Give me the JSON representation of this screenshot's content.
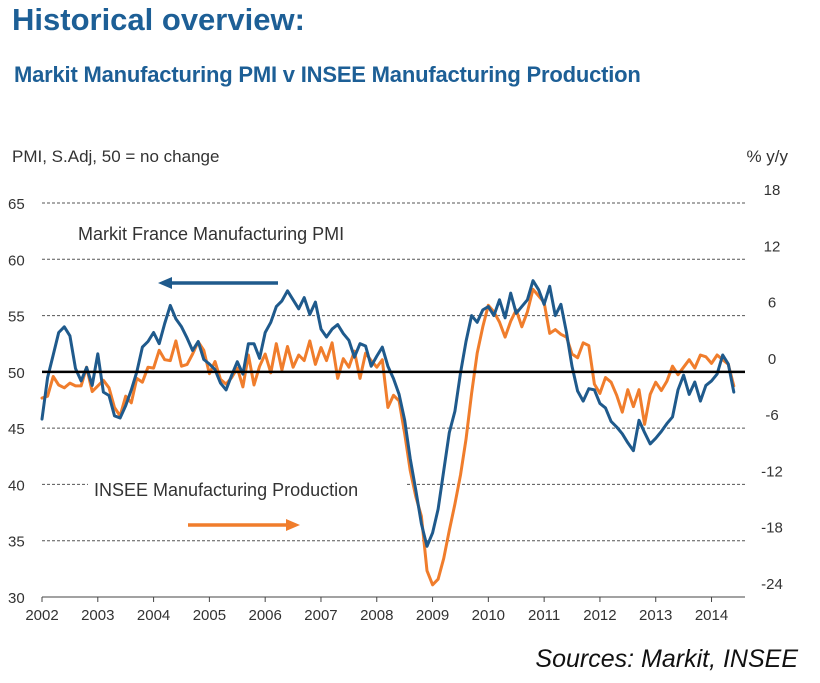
{
  "header": {
    "title": "Historical overview:",
    "subtitle": "Markit Manufacturing PMI v INSEE Manufacturing Production"
  },
  "footer": {
    "source": "Sources: Markit, INSEE"
  },
  "colors": {
    "pmi": "#1f5a8c",
    "production": "#f07d2c",
    "zero_line": "#000000",
    "title": "#1d5f96"
  },
  "chart_data": {
    "type": "line",
    "left_axis_label": "PMI, S.Adj, 50 = no change",
    "right_axis_label": "% y/y",
    "left_ylim": [
      30,
      65
    ],
    "right_ylim": [
      -24,
      18
    ],
    "left_ticks": [
      "65",
      "60",
      "55",
      "50",
      "45",
      "40",
      "35",
      "30"
    ],
    "right_ticks": [
      "18",
      "12",
      "6",
      "0",
      "-6",
      "-12",
      "-18",
      "-24"
    ],
    "x_ticks": [
      "2002",
      "2003",
      "2004",
      "2005",
      "2006",
      "2007",
      "2008",
      "2009",
      "2010",
      "2011",
      "2012",
      "2013",
      "2014"
    ],
    "xlim": [
      2002,
      2014.6
    ],
    "reference_line": 50,
    "grid": "dashed horizontal",
    "series": [
      {
        "name": "Markit France Manufacturing PMI",
        "axis": "left",
        "arrow": "left",
        "x": [
          2002.0,
          2002.1,
          2002.2,
          2002.3,
          2002.4,
          2002.5,
          2002.6,
          2002.7,
          2002.8,
          2002.9,
          2003.0,
          2003.1,
          2003.2,
          2003.3,
          2003.4,
          2003.5,
          2003.6,
          2003.7,
          2003.8,
          2003.9,
          2004.0,
          2004.1,
          2004.2,
          2004.3,
          2004.4,
          2004.5,
          2004.6,
          2004.7,
          2004.8,
          2004.9,
          2005.0,
          2005.1,
          2005.2,
          2005.3,
          2005.4,
          2005.5,
          2005.6,
          2005.7,
          2005.8,
          2005.9,
          2006.0,
          2006.1,
          2006.2,
          2006.3,
          2006.4,
          2006.5,
          2006.6,
          2006.7,
          2006.8,
          2006.9,
          2007.0,
          2007.1,
          2007.2,
          2007.3,
          2007.4,
          2007.5,
          2007.6,
          2007.7,
          2007.8,
          2007.9,
          2008.0,
          2008.1,
          2008.2,
          2008.3,
          2008.4,
          2008.5,
          2008.6,
          2008.7,
          2008.8,
          2008.9,
          2009.0,
          2009.1,
          2009.2,
          2009.3,
          2009.4,
          2009.5,
          2009.6,
          2009.7,
          2009.8,
          2009.9,
          2010.0,
          2010.1,
          2010.2,
          2010.3,
          2010.4,
          2010.5,
          2010.6,
          2010.7,
          2010.8,
          2010.9,
          2011.0,
          2011.1,
          2011.2,
          2011.3,
          2011.4,
          2011.5,
          2011.6,
          2011.7,
          2011.8,
          2011.9,
          2012.0,
          2012.1,
          2012.2,
          2012.3,
          2012.4,
          2012.5,
          2012.6,
          2012.7,
          2012.8,
          2012.9,
          2013.0,
          2013.1,
          2013.2,
          2013.3,
          2013.4,
          2013.5,
          2013.6,
          2013.7,
          2013.8,
          2013.9,
          2014.0,
          2014.1,
          2014.2,
          2014.3,
          2014.4
        ],
        "y": [
          45.8,
          49.5,
          51.5,
          53.5,
          54.0,
          53.2,
          50.3,
          49.2,
          50.4,
          48.8,
          51.6,
          48.2,
          47.9,
          46.1,
          45.9,
          47.0,
          48.4,
          50.0,
          52.2,
          52.7,
          53.5,
          52.5,
          54.3,
          55.9,
          54.7,
          54.0,
          53.0,
          51.9,
          52.7,
          51.1,
          50.7,
          50.2,
          49.0,
          48.4,
          49.7,
          50.9,
          49.8,
          52.5,
          52.5,
          51.2,
          53.5,
          54.4,
          55.8,
          56.3,
          57.2,
          56.4,
          55.6,
          56.6,
          55.1,
          56.2,
          53.8,
          53.1,
          53.8,
          54.2,
          53.4,
          52.8,
          51.3,
          52.5,
          52.3,
          50.5,
          51.4,
          52.2,
          50.5,
          49.4,
          48.0,
          45.7,
          42.3,
          39.5,
          36.5,
          34.5,
          35.7,
          37.8,
          41.2,
          44.6,
          46.5,
          49.9,
          52.7,
          55.0,
          54.4,
          55.5,
          55.8,
          55.0,
          56.4,
          54.8,
          57.0,
          55.2,
          55.8,
          56.4,
          58.1,
          57.3,
          56.0,
          57.6,
          55.0,
          56.0,
          53.5,
          50.5,
          48.3,
          47.4,
          48.5,
          48.4,
          47.2,
          46.8,
          45.6,
          45.1,
          44.5,
          43.7,
          43.0,
          45.7,
          44.6,
          43.6,
          44.1,
          44.7,
          45.4,
          46.0,
          48.4,
          49.7,
          48.0,
          49.1,
          47.4,
          48.8,
          49.2,
          49.8,
          51.5,
          50.7,
          48.2
        ]
      },
      {
        "name": "INSEE Manufacturing Production",
        "axis": "right",
        "arrow": "right",
        "x": [
          2002.0,
          2002.1,
          2002.2,
          2002.3,
          2002.4,
          2002.5,
          2002.6,
          2002.7,
          2002.8,
          2002.9,
          2003.0,
          2003.1,
          2003.2,
          2003.3,
          2003.4,
          2003.5,
          2003.6,
          2003.7,
          2003.8,
          2003.9,
          2004.0,
          2004.1,
          2004.2,
          2004.3,
          2004.4,
          2004.5,
          2004.6,
          2004.7,
          2004.8,
          2004.9,
          2005.0,
          2005.1,
          2005.2,
          2005.3,
          2005.4,
          2005.5,
          2005.6,
          2005.7,
          2005.8,
          2005.9,
          2006.0,
          2006.1,
          2006.2,
          2006.3,
          2006.4,
          2006.5,
          2006.6,
          2006.7,
          2006.8,
          2006.9,
          2007.0,
          2007.1,
          2007.2,
          2007.3,
          2007.4,
          2007.5,
          2007.6,
          2007.7,
          2007.8,
          2007.9,
          2008.0,
          2008.1,
          2008.2,
          2008.3,
          2008.4,
          2008.5,
          2008.6,
          2008.7,
          2008.8,
          2008.9,
          2009.0,
          2009.1,
          2009.2,
          2009.3,
          2009.4,
          2009.5,
          2009.6,
          2009.7,
          2009.8,
          2009.9,
          2010.0,
          2010.1,
          2010.2,
          2010.3,
          2010.4,
          2010.5,
          2010.6,
          2010.7,
          2010.8,
          2010.9,
          2011.0,
          2011.1,
          2011.2,
          2011.3,
          2011.4,
          2011.5,
          2011.6,
          2011.7,
          2011.8,
          2011.9,
          2012.0,
          2012.1,
          2012.2,
          2012.3,
          2012.4,
          2012.5,
          2012.6,
          2012.7,
          2012.8,
          2012.9,
          2013.0,
          2013.1,
          2013.2,
          2013.3,
          2013.4,
          2013.5,
          2013.6,
          2013.7,
          2013.8,
          2013.9,
          2014.0,
          2014.1,
          2014.2,
          2014.3,
          2014.4
        ],
        "y": [
          -2.8,
          -2.6,
          -0.5,
          -1.4,
          -1.7,
          -1.2,
          -1.5,
          -1.5,
          0.5,
          -2.1,
          -1.5,
          -0.9,
          -1.7,
          -3.8,
          -4.7,
          -2.6,
          -3.3,
          -0.7,
          -1.1,
          0.5,
          0.4,
          2.3,
          1.3,
          1.2,
          3.3,
          0.6,
          0.8,
          1.9,
          3.2,
          2.3,
          -0.2,
          1.1,
          -0.8,
          -1.3,
          -0.6,
          0.4,
          -1.6,
          1.8,
          -1.4,
          0.6,
          1.9,
          -0.1,
          3.0,
          0.2,
          2.7,
          0.5,
          1.8,
          1.2,
          3.3,
          0.8,
          2.6,
          1.2,
          3.1,
          -0.7,
          1.4,
          0.5,
          2.2,
          -0.7,
          2.0,
          1.2,
          0.5,
          1.3,
          -3.8,
          -2.5,
          -3.1,
          -6.6,
          -10.5,
          -13.3,
          -15.4,
          -21.2,
          -22.7,
          -22.1,
          -19.9,
          -16.9,
          -14.1,
          -11.0,
          -7.2,
          -2.3,
          2.0,
          4.8,
          7.1,
          6.4,
          5.3,
          3.7,
          5.4,
          6.6,
          4.8,
          6.4,
          8.8,
          8.1,
          7.4,
          4.1,
          4.5,
          4.0,
          3.7,
          1.9,
          1.5,
          3.1,
          2.8,
          -1.3,
          -2.3,
          -0.6,
          -1.1,
          -2.5,
          -4.3,
          -1.9,
          -3.7,
          -1.9,
          -5.6,
          -2.4,
          -1.1,
          -2.0,
          -1.0,
          0.6,
          -0.3,
          0.5,
          1.3,
          0.4,
          1.8,
          1.6,
          0.9,
          1.8,
          1.3,
          0.8,
          -1.5
        ]
      }
    ]
  }
}
